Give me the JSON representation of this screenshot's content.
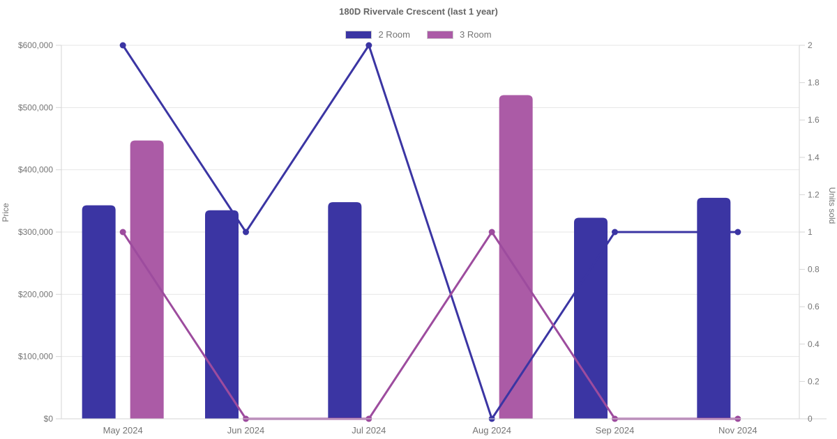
{
  "chart_data": {
    "type": "bar",
    "title": "180D Rivervale Crescent (last 1 year)",
    "categories": [
      "May 2024",
      "Jun 2024",
      "Jul 2024",
      "Aug 2024",
      "Sep 2024",
      "Nov 2024"
    ],
    "bar_series": [
      {
        "name": "2 Room",
        "axis": "price",
        "color": "#3b35a3",
        "values": [
          343000,
          335000,
          348000,
          null,
          323000,
          355000
        ]
      },
      {
        "name": "3 Room",
        "axis": "price",
        "color": "#ab5ba6",
        "values": [
          447000,
          null,
          null,
          520000,
          null,
          null
        ]
      }
    ],
    "line_series": [
      {
        "name": "2 Room",
        "axis": "units",
        "color": "#3b35a3",
        "values": [
          2,
          1,
          2,
          0,
          1,
          1
        ]
      },
      {
        "name": "3 Room",
        "axis": "units",
        "color": "#9d4c9e",
        "values": [
          1,
          0,
          0,
          1,
          0,
          0
        ]
      }
    ],
    "left_axis": {
      "label": "Price",
      "min": 0,
      "max": 600000,
      "tick_labels": [
        "$0",
        "$100,000",
        "$200,000",
        "$300,000",
        "$400,000",
        "$500,000",
        "$600,000"
      ]
    },
    "right_axis": {
      "label": "Units sold",
      "min": 0,
      "max": 2,
      "tick_labels": [
        "0",
        "0.2",
        "0.4",
        "0.6",
        "0.8",
        "1",
        "1.2",
        "1.4",
        "1.6",
        "1.8",
        "2"
      ]
    },
    "legend": [
      {
        "label": "2 Room",
        "color": "#3b35a3"
      },
      {
        "label": "3 Room",
        "color": "#ab5ba6"
      }
    ],
    "grid": {
      "on": true,
      "color": "#e6e6e6",
      "axis_line_color": "#d6d6d6",
      "text_color": "#757575"
    },
    "legend_position": "top"
  }
}
